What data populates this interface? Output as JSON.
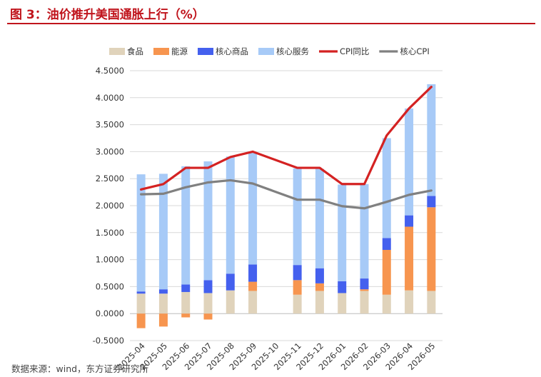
{
  "figure_title": "图 3：油价推升美国通胀上行（%）",
  "source": "数据来源：wind，东方证券研究所",
  "chart_data": {
    "type": "bar",
    "stacked": true,
    "categories": [
      "2025-04",
      "2025-05",
      "2025-06",
      "2025-07",
      "2025-08",
      "2025-09",
      "2025-10",
      "2025-11",
      "2025-12",
      "2026-01",
      "2026-02",
      "2026-03",
      "2026-04",
      "2026-05"
    ],
    "ylim": [
      -0.5,
      4.5
    ],
    "yticks": [
      "-0.5000",
      "0.0000",
      "0.5000",
      "1.0000",
      "1.5000",
      "2.0000",
      "2.5000",
      "3.0000",
      "3.5000",
      "4.0000",
      "4.5000"
    ],
    "grid": true,
    "legend_position": "top",
    "series": [
      {
        "name": "食品",
        "type": "bar",
        "color": "#e0d3bb",
        "values": [
          0.37,
          0.37,
          0.4,
          0.38,
          0.43,
          0.42,
          null,
          0.35,
          0.42,
          0.38,
          0.42,
          0.35,
          0.43,
          0.42
        ]
      },
      {
        "name": "能源",
        "type": "bar",
        "color": "#f7954f",
        "values": [
          -0.27,
          -0.24,
          -0.07,
          -0.11,
          0.0,
          0.17,
          null,
          0.27,
          0.14,
          0.0,
          0.03,
          0.83,
          1.18,
          1.55
        ]
      },
      {
        "name": "核心商品",
        "type": "bar",
        "color": "#4460ee",
        "values": [
          0.04,
          0.08,
          0.14,
          0.24,
          0.31,
          0.32,
          null,
          0.28,
          0.28,
          0.22,
          0.2,
          0.22,
          0.21,
          0.21
        ]
      },
      {
        "name": "核心服务",
        "type": "bar",
        "color": "#a7caf7",
        "values": [
          2.17,
          2.14,
          2.19,
          2.2,
          2.17,
          2.08,
          null,
          1.79,
          1.84,
          1.79,
          1.75,
          1.85,
          1.98,
          2.07
        ]
      },
      {
        "name": "CPI同比",
        "type": "line",
        "color": "#d42222",
        "values": [
          2.3,
          2.4,
          2.7,
          2.7,
          2.9,
          3.0,
          null,
          2.7,
          2.7,
          2.4,
          2.4,
          3.3,
          3.8,
          4.2
        ]
      },
      {
        "name": "核心CPI",
        "type": "line",
        "color": "#808080",
        "values": [
          2.21,
          2.22,
          2.34,
          2.43,
          2.47,
          2.41,
          null,
          2.11,
          2.11,
          1.99,
          1.95,
          2.07,
          2.2,
          2.28
        ]
      }
    ]
  }
}
